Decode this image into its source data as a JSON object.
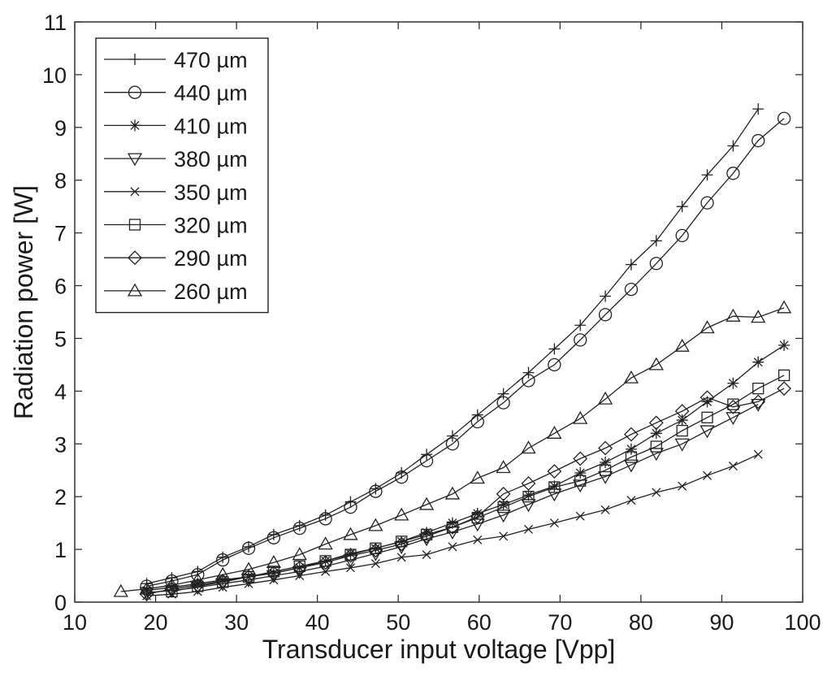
{
  "chart_data": {
    "type": "line",
    "xlabel": "Transducer input voltage [Vpp]",
    "ylabel": "Radiation power [W]",
    "xlim": [
      10,
      100
    ],
    "ylim": [
      0,
      11
    ],
    "xticks": [
      "10",
      "20",
      "30",
      "40",
      "50",
      "60",
      "70",
      "80",
      "90",
      "100"
    ],
    "yticks": [
      "0",
      "1",
      "2",
      "3",
      "4",
      "5",
      "6",
      "7",
      "8",
      "9",
      "10",
      "11"
    ],
    "grid": false,
    "legend_position": "top-left",
    "series": [
      {
        "name": "470 µm",
        "marker": "plus",
        "x": [
          18.9,
          22,
          25.2,
          28.3,
          31.5,
          34.6,
          37.8,
          41,
          44.1,
          47.2,
          50.4,
          53.5,
          56.7,
          59.8,
          63,
          66.1,
          69.3,
          72.5,
          75.6,
          78.8,
          81.9,
          85.1,
          88.2,
          91.4,
          94.5
        ],
        "y": [
          0.35,
          0.46,
          0.58,
          0.85,
          1.05,
          1.28,
          1.45,
          1.65,
          1.9,
          2.15,
          2.45,
          2.8,
          3.15,
          3.55,
          3.95,
          4.35,
          4.8,
          5.25,
          5.8,
          6.4,
          6.85,
          7.5,
          8.1,
          8.65,
          9.35
        ]
      },
      {
        "name": "440 µm",
        "marker": "circle",
        "x": [
          18.9,
          22,
          25.2,
          28.3,
          31.5,
          34.6,
          37.8,
          41,
          44.1,
          47.2,
          50.4,
          53.5,
          56.7,
          59.8,
          63,
          66.1,
          69.3,
          72.5,
          75.6,
          78.8,
          81.9,
          85.1,
          88.2,
          91.4,
          94.5,
          97.7
        ],
        "y": [
          0.3,
          0.4,
          0.52,
          0.8,
          1.02,
          1.22,
          1.4,
          1.58,
          1.8,
          2.1,
          2.37,
          2.68,
          3.0,
          3.42,
          3.78,
          4.2,
          4.5,
          4.97,
          5.45,
          5.93,
          6.42,
          6.95,
          7.57,
          8.13,
          8.75,
          9.17
        ]
      },
      {
        "name": "410 µm",
        "marker": "asterisk",
        "x": [
          18.9,
          22,
          25.2,
          28.3,
          31.5,
          34.6,
          37.8,
          41,
          44.1,
          47.2,
          50.4,
          53.5,
          56.7,
          59.8,
          63,
          66.1,
          69.3,
          72.5,
          75.6,
          78.8,
          81.9,
          85.1,
          88.2,
          91.4,
          94.5,
          97.7
        ],
        "y": [
          0.22,
          0.28,
          0.35,
          0.42,
          0.48,
          0.55,
          0.65,
          0.78,
          0.92,
          1.02,
          1.15,
          1.32,
          1.5,
          1.68,
          1.85,
          2.03,
          2.2,
          2.45,
          2.65,
          2.9,
          3.2,
          3.45,
          3.8,
          4.15,
          4.55,
          4.87
        ]
      },
      {
        "name": "380 µm",
        "marker": "triangle-down",
        "x": [
          18.9,
          22,
          25.2,
          28.3,
          31.5,
          34.6,
          37.8,
          41,
          44.1,
          47.2,
          50.4,
          53.5,
          56.7,
          59.8,
          63,
          66.1,
          69.3,
          72.5,
          75.6,
          78.8,
          81.9,
          85.1,
          88.2,
          91.4,
          94.5
        ],
        "y": [
          0.18,
          0.22,
          0.28,
          0.35,
          0.42,
          0.5,
          0.58,
          0.68,
          0.8,
          0.92,
          1.05,
          1.2,
          1.33,
          1.48,
          1.65,
          1.85,
          2.05,
          2.22,
          2.38,
          2.6,
          2.82,
          3.0,
          3.25,
          3.5,
          3.75
        ]
      },
      {
        "name": "350 µm",
        "marker": "cross",
        "x": [
          18.9,
          22,
          25.2,
          28.3,
          31.5,
          34.6,
          37.8,
          41,
          44.1,
          47.2,
          50.4,
          53.5,
          56.7,
          59.8,
          63,
          66.1,
          69.3,
          72.5,
          75.6,
          78.8,
          81.9,
          85.1,
          88.2,
          91.4,
          94.5
        ],
        "y": [
          0.12,
          0.15,
          0.2,
          0.28,
          0.35,
          0.42,
          0.5,
          0.58,
          0.65,
          0.73,
          0.85,
          0.9,
          1.05,
          1.18,
          1.25,
          1.38,
          1.5,
          1.63,
          1.75,
          1.93,
          2.08,
          2.2,
          2.4,
          2.58,
          2.8
        ]
      },
      {
        "name": "320 µm",
        "marker": "square",
        "x": [
          22,
          25.2,
          28.3,
          31.5,
          34.6,
          37.8,
          41,
          44.1,
          47.2,
          50.4,
          53.5,
          56.7,
          59.8,
          63,
          66.1,
          69.3,
          72.5,
          75.6,
          78.8,
          81.9,
          85.1,
          88.2,
          91.4,
          94.5,
          97.7
        ],
        "y": [
          0.2,
          0.3,
          0.38,
          0.48,
          0.58,
          0.68,
          0.78,
          0.9,
          1.02,
          1.15,
          1.28,
          1.42,
          1.6,
          1.8,
          2.0,
          2.18,
          2.3,
          2.5,
          2.75,
          2.95,
          3.25,
          3.5,
          3.75,
          4.05,
          4.3
        ]
      },
      {
        "name": "290 µm",
        "marker": "diamond",
        "x": [
          18.9,
          22,
          25.2,
          28.3,
          31.5,
          34.6,
          37.8,
          41,
          44.1,
          47.2,
          50.4,
          53.5,
          56.7,
          59.8,
          63,
          66.1,
          69.3,
          72.5,
          75.6,
          78.8,
          81.9,
          85.1,
          88.2,
          91.4,
          94.5,
          97.7
        ],
        "y": [
          0.15,
          0.25,
          0.32,
          0.4,
          0.48,
          0.55,
          0.65,
          0.75,
          0.88,
          0.98,
          1.1,
          1.25,
          1.42,
          1.62,
          2.05,
          2.25,
          2.48,
          2.72,
          2.92,
          3.18,
          3.4,
          3.62,
          3.88,
          3.7,
          3.8,
          4.05
        ]
      },
      {
        "name": "260 µm",
        "marker": "triangle-up",
        "x": [
          15.7,
          18.9,
          22,
          25.2,
          28.3,
          31.5,
          34.6,
          37.8,
          41,
          44.1,
          47.2,
          50.4,
          53.5,
          56.7,
          59.8,
          63,
          66.1,
          69.3,
          72.5,
          75.6,
          78.8,
          81.9,
          85.1,
          88.2,
          91.4,
          94.5,
          97.7
        ],
        "y": [
          0.2,
          0.25,
          0.32,
          0.42,
          0.52,
          0.62,
          0.75,
          0.9,
          1.1,
          1.28,
          1.45,
          1.65,
          1.85,
          2.05,
          2.35,
          2.55,
          2.92,
          3.2,
          3.48,
          3.85,
          4.25,
          4.5,
          4.85,
          5.2,
          5.42,
          5.4,
          5.58
        ]
      }
    ]
  }
}
